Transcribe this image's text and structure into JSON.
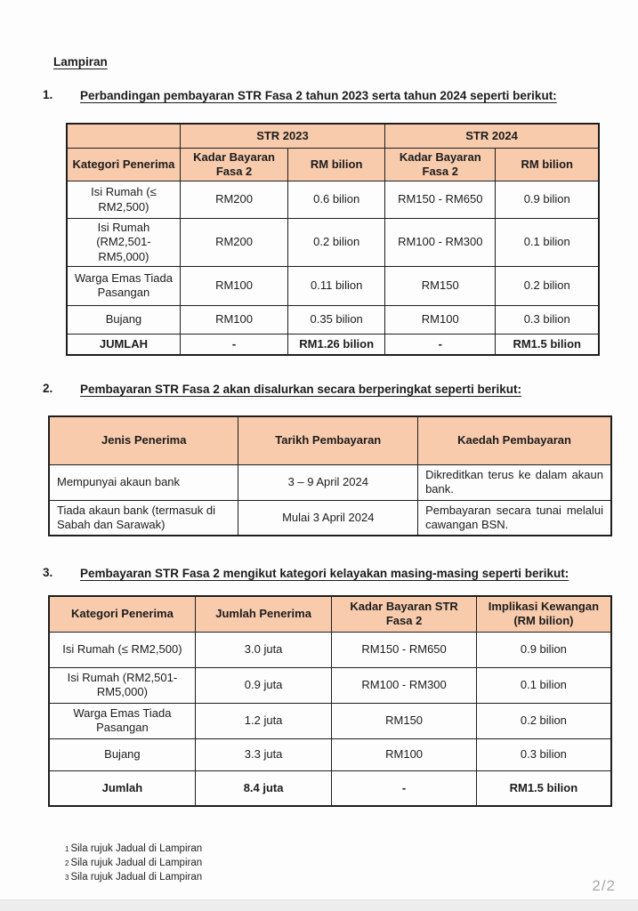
{
  "page": {
    "heading": "Lampiran",
    "page_indicator": "2/2"
  },
  "colors": {
    "header_fill": "#F8CBAD",
    "border": "#1e1e1e",
    "page_number": "#a9a9a9"
  },
  "sections": [
    {
      "number": "1.",
      "title": "Perbandingan pembayaran STR Fasa 2 tahun 2023 serta tahun 2024 seperti berikut:"
    },
    {
      "number": "2.",
      "title": "Pembayaran STR Fasa 2 akan disalurkan secara berperingkat seperti berikut:"
    },
    {
      "number": "3.",
      "title": "Pembayaran STR Fasa 2 mengikut kategori kelayakan masing-masing seperti berikut:"
    }
  ],
  "table1": {
    "group_headers": {
      "corner": "",
      "str2023": "STR 2023",
      "str2024": "STR 2024"
    },
    "columns": [
      "Kategori Penerima",
      "Kadar Bayaran Fasa 2",
      "RM bilion",
      "Kadar Bayaran Fasa 2",
      "RM bilion"
    ],
    "rows": [
      [
        "Isi Rumah (≤ RM2,500)",
        "RM200",
        "0.6 bilion",
        "RM150 - RM650",
        "0.9 bilion"
      ],
      [
        "Isi Rumah (RM2,501- RM5,000)",
        "RM200",
        "0.2 bilion",
        "RM100 - RM300",
        "0.1 bilion"
      ],
      [
        "Warga Emas Tiada Pasangan",
        "RM100",
        "0.11 bilion",
        "RM150",
        "0.2 bilion"
      ],
      [
        "Bujang",
        "RM100",
        "0.35 bilion",
        "RM100",
        "0.3 bilion"
      ]
    ],
    "total_row": [
      "JUMLAH",
      "-",
      "RM1.26 bilion",
      "-",
      "RM1.5 bilion"
    ]
  },
  "table2": {
    "columns": [
      "Jenis Penerima",
      "Tarikh Pembayaran",
      "Kaedah Pembayaran"
    ],
    "rows": [
      [
        "Mempunyai akaun bank",
        "3 – 9 April 2024",
        "Dikreditkan terus ke dalam akaun bank."
      ],
      [
        "Tiada akaun bank (termasuk di Sabah dan Sarawak)",
        "Mulai 3 April 2024",
        "Pembayaran secara tunai melalui cawangan BSN."
      ]
    ]
  },
  "table3": {
    "columns": [
      "Kategori Penerima",
      "Jumlah Penerima",
      "Kadar Bayaran STR Fasa 2",
      "Implikasi Kewangan (RM bilion)"
    ],
    "rows": [
      [
        "Isi Rumah (≤ RM2,500)",
        "3.0 juta",
        "RM150 - RM650",
        "0.9 bilion"
      ],
      [
        "Isi Rumah (RM2,501-RM5,000)",
        "0.9 juta",
        "RM100 - RM300",
        "0.1 bilion"
      ],
      [
        "Warga Emas Tiada Pasangan",
        "1.2 juta",
        "RM150",
        "0.2 bilion"
      ],
      [
        "Bujang",
        "3.3 juta",
        "RM100",
        "0.3 bilion"
      ]
    ],
    "total_row": [
      "Jumlah",
      "8.4 juta",
      "-",
      "RM1.5 bilion"
    ]
  },
  "footnotes": [
    {
      "marker": "1",
      "text": "Sila rujuk Jadual di Lampiran"
    },
    {
      "marker": "2",
      "text": "Sila rujuk Jadual di Lampiran"
    },
    {
      "marker": "3",
      "text": "Sila rujuk Jadual di Lampiran"
    }
  ]
}
